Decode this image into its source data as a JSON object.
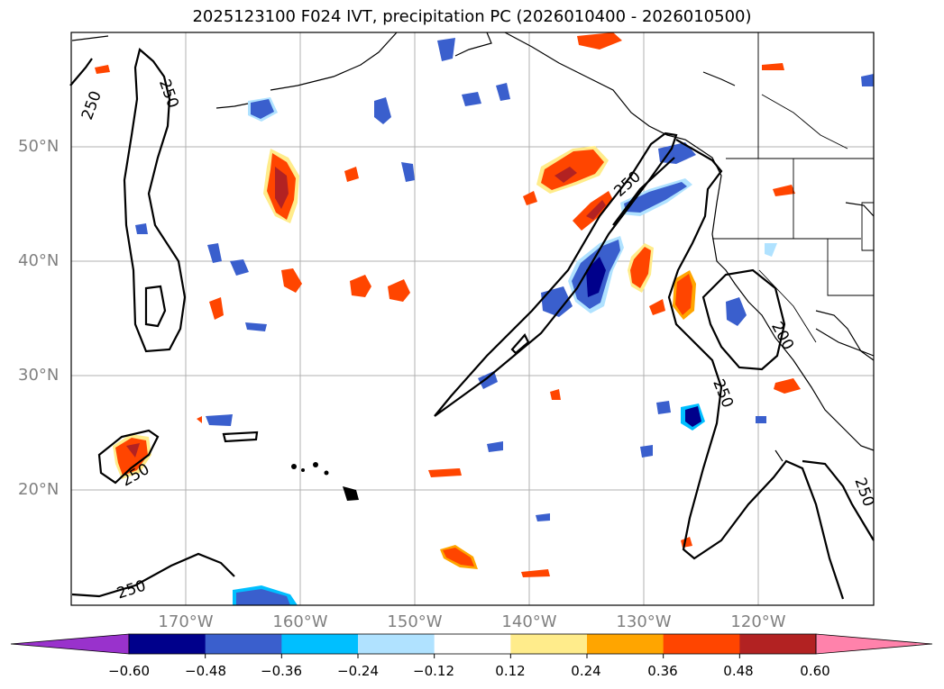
{
  "title": "2025123100 F024 IVT, precipitation PC (2026010400 - 2026010500)",
  "lat_labels": [
    "50°N",
    "40°N",
    "30°N",
    "20°N"
  ],
  "lon_labels": [
    "170°W",
    "160°W",
    "150°W",
    "140°W",
    "130°W",
    "120°W"
  ],
  "contour_labels": [
    "250",
    "250",
    "250",
    "250",
    "200",
    "250",
    "250",
    "250"
  ],
  "colorbar": {
    "ticks": [
      "−0.60",
      "−0.48",
      "−0.36",
      "−0.24",
      "−0.12",
      "0.12",
      "0.24",
      "0.36",
      "0.48",
      "0.60"
    ],
    "colors": [
      "#9932cc",
      "#00008b",
      "#3a5fcd",
      "#00bfff",
      "#b0e2ff",
      "#ffffff",
      "#ffec8b",
      "#ffa500",
      "#ff4500",
      "#b22222",
      "#ff82ab"
    ]
  },
  "colors": {
    "positive_mid": "#ff4500",
    "positive_high": "#b22222",
    "positive_low": "#ffa500",
    "positive_edge": "#ffec8b",
    "negative_mid": "#3a5fcd",
    "negative_high": "#00008b",
    "negative_low": "#00bfff",
    "negative_edge": "#b0e2ff"
  }
}
